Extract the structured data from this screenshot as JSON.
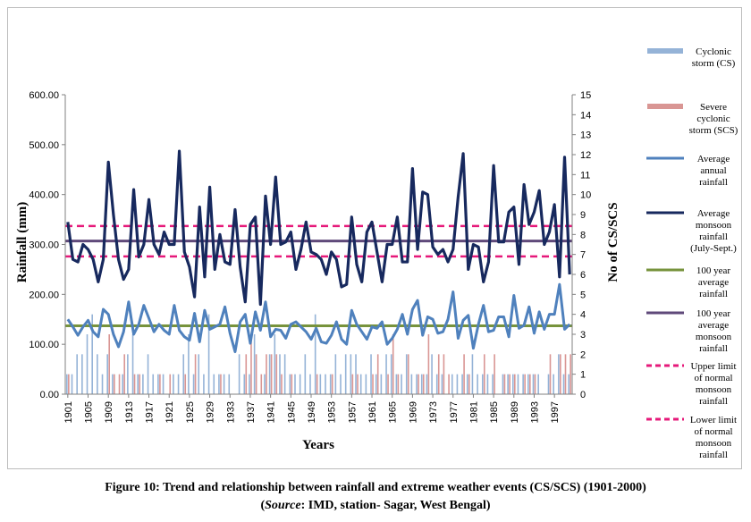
{
  "caption": {
    "line1": "Figure 10: Trend and relationship between rainfall and extreme weather events (CS/SCS) (1901-2000)",
    "line2_open": "(",
    "line2_source_label": "Source",
    "line2_rest": ": IMD, station- Sagar, West Bengal)"
  },
  "chart_data": {
    "type": "bar+line",
    "xlabel": "Years",
    "ylabel": "Rainfall (mm)",
    "y2label": "No of CS/SCS",
    "ylim": [
      0,
      600
    ],
    "y_ticks": [
      "0.00",
      "100.00",
      "200.00",
      "300.00",
      "400.00",
      "500.00",
      "600.00"
    ],
    "y2lim": [
      0,
      15
    ],
    "y2_ticks": [
      "0",
      "1",
      "2",
      "3",
      "4",
      "5",
      "6",
      "7",
      "8",
      "9",
      "10",
      "11",
      "12",
      "13",
      "14",
      "15"
    ],
    "x_ticks": [
      "1901",
      "1905",
      "1909",
      "1913",
      "1917",
      "1921",
      "1925",
      "1929",
      "1933",
      "1937",
      "1941",
      "1945",
      "1949",
      "1953",
      "1957",
      "1961",
      "1965",
      "1969",
      "1973",
      "1977",
      "1981",
      "1985",
      "1989",
      "1993",
      "1997"
    ],
    "x_start": 1901,
    "x_end": 2000,
    "grid": false,
    "legend_position": "right",
    "series": [
      {
        "name": "Cyclonic storm (CS)",
        "kind": "bar",
        "axis": "right",
        "color": "#95b3d7",
        "values": [
          1,
          1,
          2,
          2,
          3,
          4,
          2,
          1,
          2,
          1,
          0,
          1,
          2,
          3,
          1,
          1,
          2,
          1,
          1,
          1,
          0,
          1,
          1,
          2,
          3,
          1,
          2,
          1,
          4,
          1,
          1,
          1,
          1,
          0,
          2,
          1,
          1,
          3,
          0,
          1,
          2,
          3,
          2,
          2,
          1,
          1,
          1,
          2,
          1,
          4,
          1,
          1,
          1,
          2,
          1,
          2,
          2,
          2,
          1,
          1,
          2,
          1,
          1,
          2,
          2,
          1,
          1,
          2,
          1,
          1,
          1,
          1,
          2,
          1,
          1,
          0,
          1,
          1,
          1,
          1,
          2,
          1,
          1,
          1,
          1,
          0,
          1,
          1,
          1,
          1,
          1,
          1,
          1,
          1,
          0,
          1,
          1,
          2,
          1,
          1
        ]
      },
      {
        "name": "Severe cyclonic storm (SCS)",
        "kind": "bar",
        "axis": "right",
        "color": "#d99694",
        "values": [
          1,
          0,
          0,
          0,
          0,
          0,
          0,
          0,
          3,
          1,
          1,
          2,
          0,
          1,
          1,
          0,
          0,
          0,
          1,
          0,
          1,
          0,
          0,
          1,
          0,
          2,
          0,
          0,
          0,
          0,
          1,
          0,
          0,
          0,
          0,
          2,
          3,
          2,
          1,
          2,
          2,
          2,
          1,
          0,
          1,
          0,
          0,
          0,
          0,
          1,
          0,
          0,
          1,
          0,
          0,
          0,
          1,
          1,
          0,
          0,
          1,
          2,
          0,
          1,
          3,
          1,
          0,
          2,
          0,
          1,
          1,
          3,
          0,
          2,
          2,
          1,
          0,
          0,
          2,
          1,
          0,
          0,
          2,
          0,
          2,
          0,
          1,
          1,
          1,
          0,
          1,
          1,
          1,
          0,
          0,
          2,
          0,
          2,
          2,
          2
        ]
      },
      {
        "name": "Average annual rainfall",
        "kind": "line",
        "axis": "left",
        "color": "#4f81bd",
        "values": [
          150,
          135,
          118,
          135,
          148,
          125,
          115,
          170,
          160,
          120,
          95,
          125,
          185,
          120,
          140,
          178,
          152,
          125,
          140,
          128,
          120,
          178,
          128,
          115,
          108,
          162,
          105,
          168,
          130,
          135,
          140,
          175,
          122,
          85,
          145,
          160,
          102,
          165,
          128,
          185,
          115,
          130,
          128,
          112,
          140,
          145,
          135,
          125,
          110,
          132,
          105,
          102,
          118,
          145,
          110,
          100,
          168,
          140,
          125,
          110,
          135,
          132,
          145,
          100,
          112,
          130,
          160,
          120,
          170,
          188,
          118,
          155,
          150,
          122,
          125,
          150,
          205,
          112,
          148,
          158,
          92,
          140,
          178,
          125,
          128,
          155,
          155,
          115,
          198,
          132,
          138,
          175,
          122,
          165,
          130,
          160,
          160,
          220,
          130,
          140
        ]
      },
      {
        "name": "Average monsoon rainfall (July-Sept.)",
        "kind": "line",
        "axis": "left",
        "color": "#17295e",
        "values": [
          345,
          270,
          265,
          300,
          290,
          270,
          225,
          270,
          465,
          360,
          270,
          230,
          250,
          410,
          275,
          300,
          390,
          300,
          280,
          325,
          300,
          300,
          487,
          285,
          255,
          195,
          375,
          235,
          415,
          250,
          320,
          265,
          260,
          370,
          255,
          185,
          340,
          355,
          180,
          397,
          300,
          435,
          300,
          305,
          325,
          250,
          290,
          345,
          285,
          280,
          270,
          240,
          285,
          270,
          215,
          220,
          355,
          260,
          225,
          325,
          345,
          285,
          225,
          300,
          300,
          355,
          265,
          265,
          452,
          290,
          405,
          400,
          295,
          280,
          290,
          265,
          290,
          395,
          482,
          250,
          300,
          295,
          225,
          265,
          458,
          305,
          305,
          365,
          375,
          260,
          420,
          340,
          365,
          408,
          300,
          325,
          380,
          235,
          475,
          240
        ]
      },
      {
        "name": "100 year average rainfall",
        "kind": "hline",
        "axis": "left",
        "color": "#77933c",
        "value": 137
      },
      {
        "name": "100 year average monsoon rainfall",
        "kind": "hline",
        "axis": "left",
        "color": "#5f497a",
        "value": 307
      },
      {
        "name": "Upper limit of normal monsoon rainfall",
        "kind": "hline-dashed",
        "axis": "left",
        "color": "#e6197a",
        "value": 337
      },
      {
        "name": "Lower limit of normal monsoon rainfall",
        "kind": "hline-dashed",
        "axis": "left",
        "color": "#e6197a",
        "value": 276
      }
    ],
    "legend": [
      {
        "lines": [
          "Cyclonic",
          "storm (CS)"
        ],
        "color": "#95b3d7",
        "swatch": "bar"
      },
      {
        "lines": [
          "Severe",
          "cyclonic",
          "storm (SCS)"
        ],
        "color": "#d99694",
        "swatch": "bar"
      },
      {
        "lines": [
          "Average",
          "annual",
          "rainfall"
        ],
        "color": "#4f81bd",
        "swatch": "line"
      },
      {
        "lines": [
          "Average",
          "monsoon",
          "rainfall",
          "(July-Sept.)"
        ],
        "color": "#17295e",
        "swatch": "line"
      },
      {
        "lines": [
          "100 year",
          "average",
          "rainfall"
        ],
        "color": "#77933c",
        "swatch": "line"
      },
      {
        "lines": [
          "100 year",
          "average",
          "monsoon",
          "rainfall"
        ],
        "color": "#5f497a",
        "swatch": "line"
      },
      {
        "lines": [
          "Upper limit",
          "of normal",
          "monsoon",
          "rainfall"
        ],
        "color": "#e6197a",
        "swatch": "dash"
      },
      {
        "lines": [
          "Lower limit",
          "of normal",
          "monsoon",
          "rainfall"
        ],
        "color": "#e6197a",
        "swatch": "dash"
      }
    ]
  }
}
